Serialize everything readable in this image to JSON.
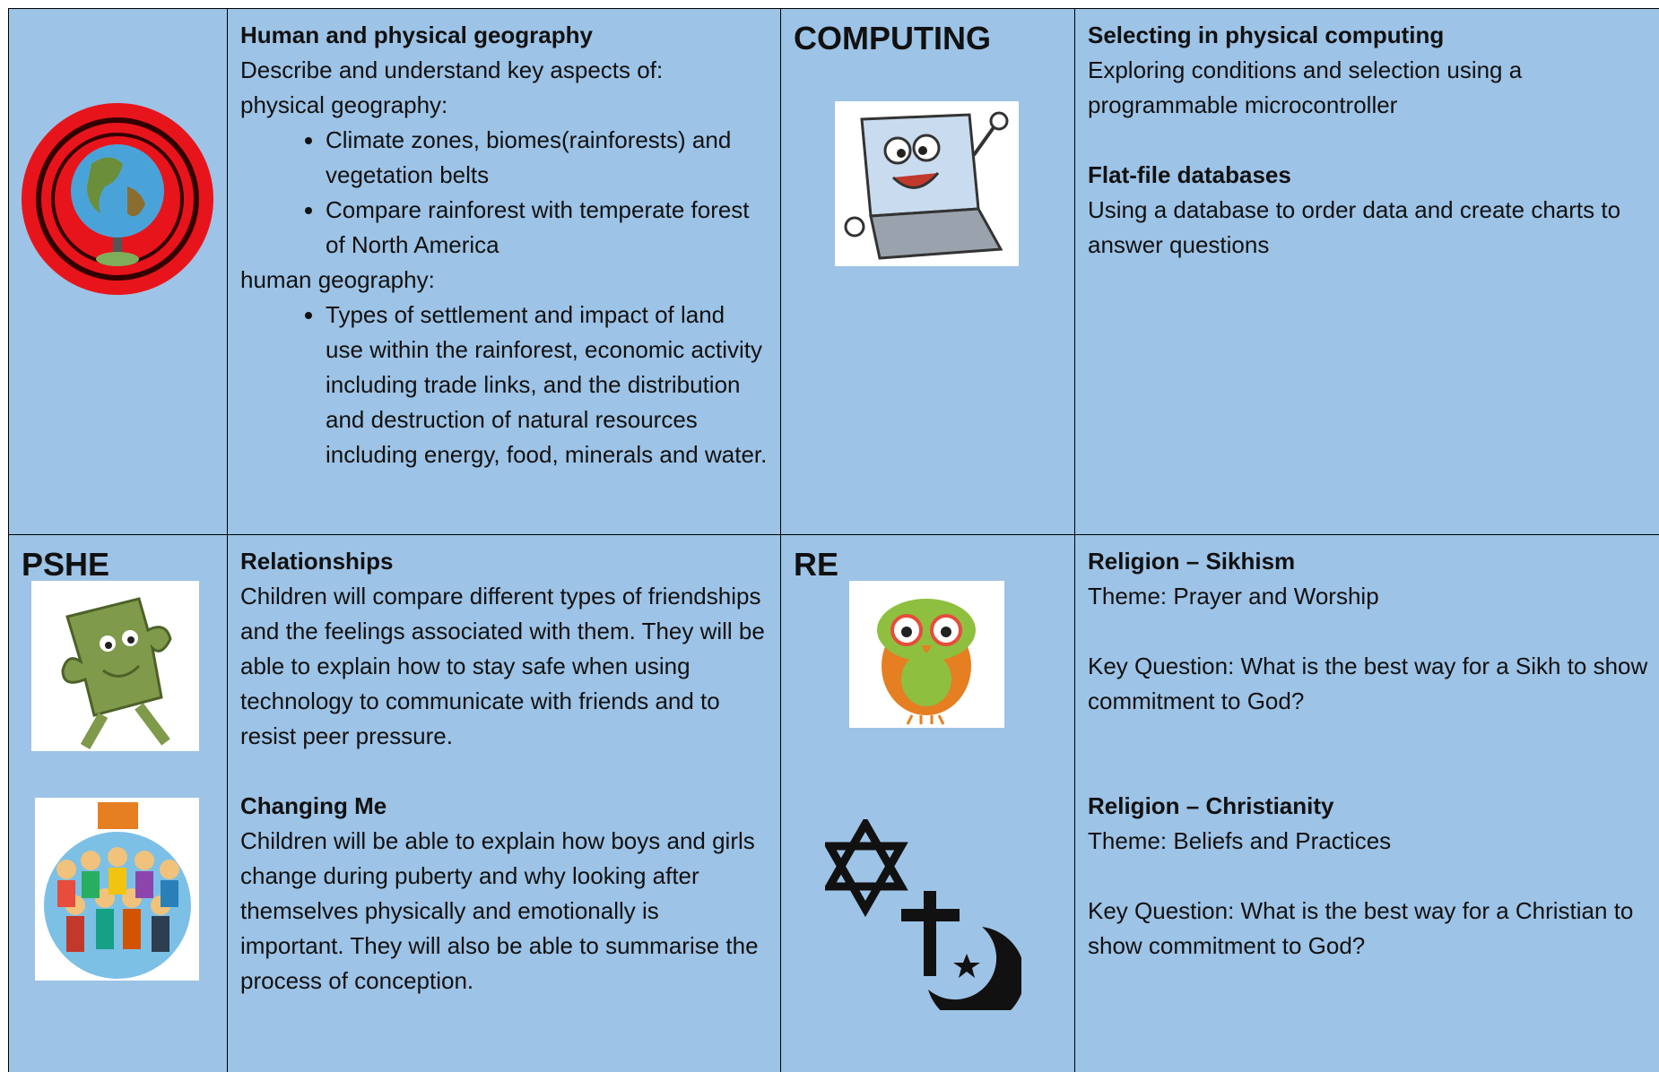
{
  "geography": {
    "title": "Human and physical geography",
    "intro": "Describe and understand key aspects of:",
    "sections": [
      {
        "label": "physical geography:",
        "bullets": [
          "Climate zones, biomes(rainforests) and vegetation belts",
          "Compare rainforest with temperate forest of North America"
        ]
      },
      {
        "label": "human geography:",
        "bullets": [
          "Types of settlement and impact of land use within the rainforest, economic activity including trade links, and the distribution and destruction of natural resources including energy, food, minerals and water."
        ]
      }
    ]
  },
  "computing": {
    "subject": "COMPUTING",
    "units": [
      {
        "title": "Selecting in physical computing",
        "text": "Exploring conditions and selection using a programmable microcontroller"
      },
      {
        "title": "Flat-file databases",
        "text": "Using a database to order data and create charts to answer questions"
      }
    ]
  },
  "pshe": {
    "subject": "PSHE",
    "units": [
      {
        "title": "Relationships",
        "text": "Children will compare different types of friendships and the feelings associated with them. They will be able to explain how to stay safe when using technology to communicate with friends and to resist peer pressure."
      },
      {
        "title": "Changing Me",
        "text": "Children will be able to explain how boys and girls change during puberty and why looking after themselves physically and emotionally is important. They will also be able to summarise the process of conception."
      }
    ]
  },
  "re": {
    "subject": "RE",
    "units": [
      {
        "title": "Religion – Sikhism",
        "theme": "Theme: Prayer and Worship",
        "question": "Key Question: What is the best way for a Sikh to show commitment to God?"
      },
      {
        "title": "Religion – Christianity",
        "theme": "Theme: Beliefs and Practices",
        "question": "Key Question: What is the best way for a Christian to show commitment to God?"
      }
    ]
  }
}
